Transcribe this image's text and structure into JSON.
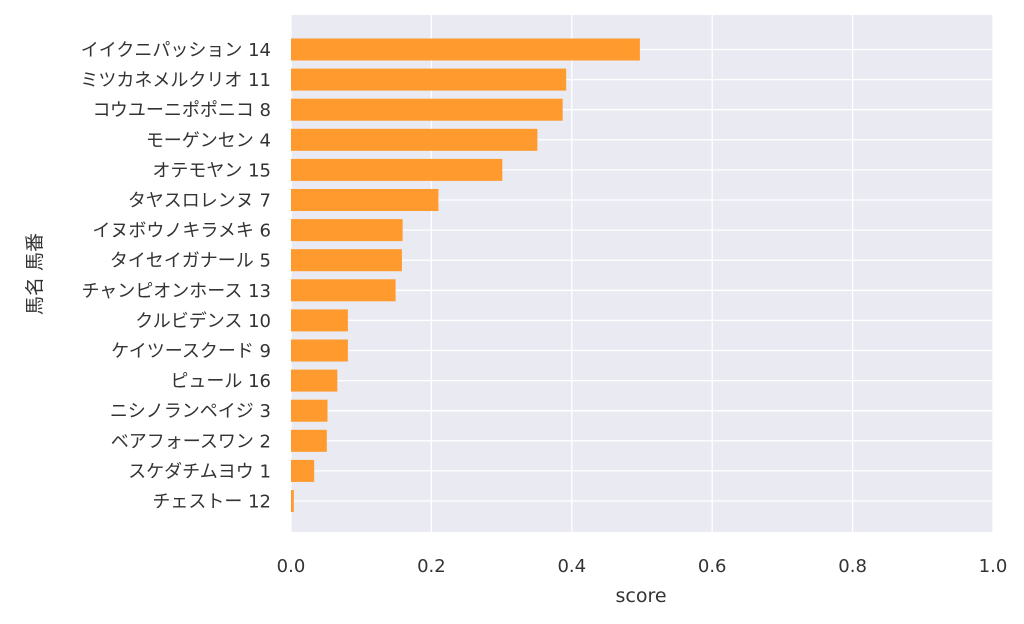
{
  "chart_data": {
    "type": "bar",
    "orientation": "horizontal",
    "categories": [
      "イイクニパッション 14",
      "ミツカネメルクリオ 11",
      "コウユーニポポニコ 8",
      "モーゲンセン 4",
      "オテモヤン 15",
      "タヤスロレンヌ 7",
      "イヌボウノキラメキ 6",
      "タイセイガナール 5",
      "チャンピオンホース 13",
      "クルビデンス 10",
      "ケイツースクード 9",
      "ピュール 16",
      "ニシノランペイジ 3",
      "ベアフォースワン 2",
      "スケダチムヨウ 1",
      "チェストー 12"
    ],
    "values": [
      0.497,
      0.392,
      0.387,
      0.351,
      0.301,
      0.21,
      0.159,
      0.158,
      0.149,
      0.081,
      0.081,
      0.066,
      0.052,
      0.051,
      0.033,
      0.004
    ],
    "xlabel": "score",
    "ylabel": "馬名 馬番",
    "xlim": [
      0,
      1.0
    ],
    "xticks": [
      "0.0",
      "0.2",
      "0.4",
      "0.6",
      "0.8",
      "1.0"
    ],
    "grid": true,
    "colors": {
      "bar": "#ff9a2e",
      "background": "#eaeaf2",
      "grid": "#ffffff"
    }
  }
}
